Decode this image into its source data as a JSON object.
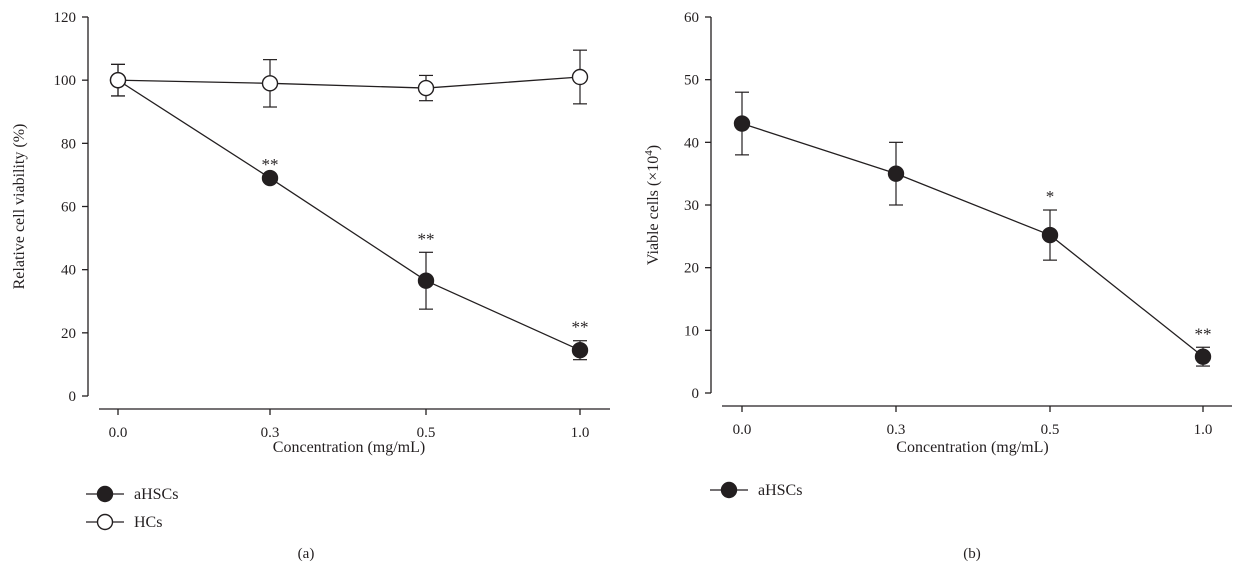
{
  "chart_data": [
    {
      "type": "line",
      "panel": "(a)",
      "categories": [
        "0.0",
        "0.3",
        "0.5",
        "1.0"
      ],
      "xlabel": "Concentration (mg/mL)",
      "ylabel": "Relative cell viability (%)",
      "ylim": [
        0,
        120
      ],
      "yticks": [
        "0",
        "20",
        "40",
        "60",
        "80",
        "100",
        "120"
      ],
      "grid": false,
      "legend_position": "bottom-left",
      "series": [
        {
          "name": "aHSCs",
          "marker": "filled-circle",
          "values": [
            100,
            69,
            36.5,
            14.5
          ],
          "error": [
            5,
            0,
            9,
            3
          ],
          "annotations": [
            "",
            "**",
            "**",
            "**"
          ]
        },
        {
          "name": "HCs",
          "marker": "open-circle",
          "values": [
            100,
            99,
            97.5,
            101
          ],
          "error": [
            5,
            7.5,
            4,
            8.5
          ],
          "annotations": [
            "",
            "",
            "",
            ""
          ]
        }
      ]
    },
    {
      "type": "line",
      "panel": "(b)",
      "categories": [
        "0.0",
        "0.3",
        "0.5",
        "1.0"
      ],
      "xlabel": "Concentration (mg/mL)",
      "ylabel": "Viable cells (×10",
      "ylabel_exponent": "4",
      "ylabel_suffix": ")",
      "ylim": [
        0,
        60
      ],
      "yticks": [
        "0",
        "10",
        "20",
        "30",
        "40",
        "50",
        "60"
      ],
      "grid": false,
      "legend_position": "bottom-left",
      "series": [
        {
          "name": "aHSCs",
          "marker": "filled-circle",
          "values": [
            43,
            35,
            25.2,
            5.8
          ],
          "error": [
            5,
            5,
            4,
            1.5
          ],
          "annotations": [
            "",
            "",
            "*",
            "**"
          ]
        }
      ]
    }
  ],
  "colors": {
    "ink": "#231f20",
    "background": "#ffffff"
  }
}
